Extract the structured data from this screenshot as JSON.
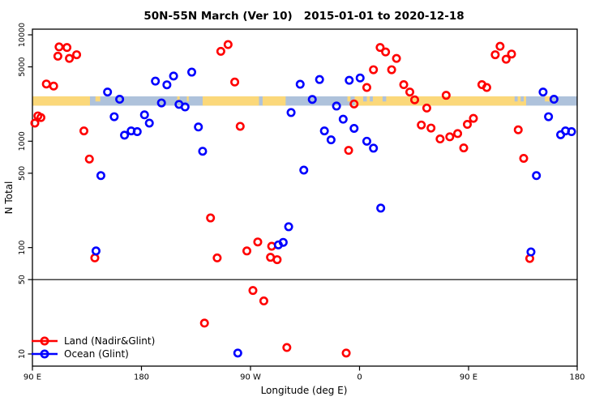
{
  "title": "50N-55N March (Ver 10)   2015-01-01 to 2020-12-18",
  "axes": {
    "x": {
      "label": "Longitude (deg E)",
      "range": [
        90,
        540
      ],
      "ticks": [
        {
          "value": 90,
          "label": "90 E"
        },
        {
          "value": 180,
          "label": "180"
        },
        {
          "value": 270,
          "label": "90 W"
        },
        {
          "value": 360,
          "label": "0"
        },
        {
          "value": 450,
          "label": "90 E"
        },
        {
          "value": 540,
          "label": "180"
        }
      ]
    },
    "y": {
      "label": "N Total",
      "scale": "log10",
      "ticks": [
        {
          "value": 10000,
          "label": "10000"
        },
        {
          "value": 5000,
          "label": "5000"
        },
        {
          "value": 1000,
          "label": "1000"
        },
        {
          "value": 500,
          "label": "500"
        },
        {
          "value": 100,
          "label": "100"
        },
        {
          "value": 50,
          "label": "50"
        },
        {
          "value": 10,
          "label": "10"
        }
      ]
    }
  },
  "reference_line": {
    "y_value": 50,
    "color": "#000000"
  },
  "land_ocean_strip": {
    "comment": "map strip of the 50N-55N latitude band drawn across the plot",
    "value_range": [
      2160,
      2640
    ],
    "ocean_color": "#AEC2DB",
    "land_color": "#FBD87A",
    "land_segments": [
      {
        "from": 90,
        "to": 137.5,
        "partial": false
      },
      {
        "from": 142,
        "to": 146,
        "partial": true
      },
      {
        "from": 209.5,
        "to": 211.5,
        "partial": true
      },
      {
        "from": 217.5,
        "to": 219,
        "partial": true
      },
      {
        "from": 230.5,
        "to": 277,
        "partial": false
      },
      {
        "from": 280,
        "to": 299,
        "partial": false
      },
      {
        "from": 350,
        "to": 352.5,
        "partial": true
      },
      {
        "from": 356,
        "to": 497.5,
        "partial": false
      },
      {
        "from": 513,
        "to": 518.5,
        "partial": true
      }
    ],
    "ocean_flecks": [
      {
        "from": 363,
        "to": 366
      },
      {
        "from": 368.5,
        "to": 371
      },
      {
        "from": 379,
        "to": 382
      },
      {
        "from": 488,
        "to": 490.5
      },
      {
        "from": 493,
        "to": 495.5
      }
    ]
  },
  "legend": [
    {
      "label": "Land (Nadir&Glint)",
      "color": "#FF0000"
    },
    {
      "label": "Ocean (Glint)",
      "color": "#0000FF"
    }
  ],
  "chart_data": {
    "type": "scatter",
    "title": "50N-55N March (Ver 10)   2015-01-01 to 2020-12-18",
    "xlabel": "Longitude (deg E)",
    "ylabel": "N Total",
    "xlim": [
      90,
      540
    ],
    "ylim_log": [
      8,
      11500
    ],
    "marker": "open-circle",
    "series": [
      {
        "name": "Land (Nadir&Glint)",
        "color": "#FF0000",
        "points": [
          [
            112,
            7700
          ],
          [
            118.5,
            7600
          ],
          [
            111,
            6300
          ],
          [
            120.5,
            6000
          ],
          [
            126.5,
            6500
          ],
          [
            101.5,
            3450
          ],
          [
            107.5,
            3300
          ],
          [
            94.5,
            1730
          ],
          [
            92,
            1480
          ],
          [
            97,
            1670
          ],
          [
            132.5,
            1250
          ],
          [
            137,
            680
          ],
          [
            141.5,
            80
          ],
          [
            232,
            19.5
          ],
          [
            237,
            190
          ],
          [
            242.5,
            80
          ],
          [
            245.5,
            7000
          ],
          [
            251.5,
            8100
          ],
          [
            257,
            3600
          ],
          [
            261.5,
            1380
          ],
          [
            267,
            93
          ],
          [
            272,
            39.5
          ],
          [
            276,
            113
          ],
          [
            281,
            31.5
          ],
          [
            287.5,
            103
          ],
          [
            286.5,
            81
          ],
          [
            292,
            77
          ],
          [
            300,
            11.5
          ],
          [
            349,
            10.2
          ],
          [
            351,
            820
          ],
          [
            355.5,
            2240
          ],
          [
            366,
            3200
          ],
          [
            371.5,
            4700
          ],
          [
            377,
            7600
          ],
          [
            381.5,
            6900
          ],
          [
            386.5,
            4700
          ],
          [
            390.5,
            6000
          ],
          [
            396.5,
            3400
          ],
          [
            401.5,
            2900
          ],
          [
            405.5,
            2450
          ],
          [
            415.5,
            2050
          ],
          [
            431.5,
            2700
          ],
          [
            411,
            1420
          ],
          [
            419,
            1330
          ],
          [
            426.5,
            1050
          ],
          [
            434.5,
            1100
          ],
          [
            441,
            1180
          ],
          [
            446,
            865
          ],
          [
            449,
            1440
          ],
          [
            454,
            1640
          ],
          [
            461,
            3400
          ],
          [
            465,
            3200
          ],
          [
            472,
            6500
          ],
          [
            476,
            7800
          ],
          [
            481,
            5900
          ],
          [
            485.5,
            6600
          ],
          [
            491,
            1280
          ],
          [
            495.5,
            690
          ],
          [
            500.5,
            79
          ]
        ]
      },
      {
        "name": "Ocean (Glint)",
        "color": "#0000FF",
        "points": [
          [
            152,
            2900
          ],
          [
            162,
            2480
          ],
          [
            157.5,
            1700
          ],
          [
            166,
            1140
          ],
          [
            171.5,
            1250
          ],
          [
            176.5,
            1230
          ],
          [
            146.5,
            475
          ],
          [
            142.5,
            93
          ],
          [
            182.5,
            1770
          ],
          [
            186.5,
            1480
          ],
          [
            191.5,
            3670
          ],
          [
            201,
            3390
          ],
          [
            206.5,
            4100
          ],
          [
            221.5,
            4460
          ],
          [
            196.5,
            2290
          ],
          [
            211,
            2220
          ],
          [
            216,
            2100
          ],
          [
            227,
            1360
          ],
          [
            230.5,
            805
          ],
          [
            259.5,
            10.2
          ],
          [
            293,
            106
          ],
          [
            297,
            112
          ],
          [
            301.5,
            157
          ],
          [
            303.5,
            1860
          ],
          [
            311,
            3430
          ],
          [
            314,
            535
          ],
          [
            321,
            2470
          ],
          [
            327,
            3800
          ],
          [
            331,
            1250
          ],
          [
            336.5,
            1030
          ],
          [
            341,
            2140
          ],
          [
            346.5,
            1610
          ],
          [
            351.5,
            3740
          ],
          [
            355.5,
            1320
          ],
          [
            360.5,
            3930
          ],
          [
            366,
            1000
          ],
          [
            371.5,
            860
          ],
          [
            377.5,
            235
          ],
          [
            501.5,
            91
          ],
          [
            506,
            475
          ],
          [
            511.5,
            2900
          ],
          [
            516,
            1700
          ],
          [
            520.5,
            2480
          ],
          [
            526,
            1150
          ],
          [
            530,
            1250
          ],
          [
            535,
            1230
          ]
        ]
      }
    ]
  }
}
